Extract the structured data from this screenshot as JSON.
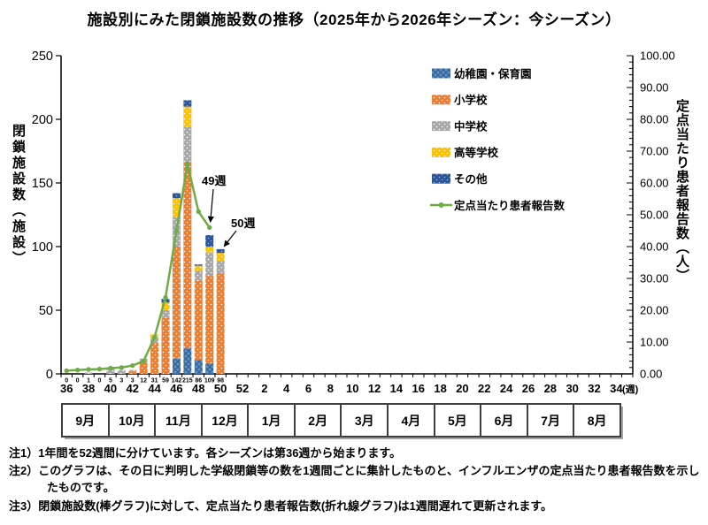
{
  "title": "施設別にみた閉鎖施設数の推移（2025年から2026年シーズン：今シーズン）",
  "chart_data": {
    "type": "stacked-bar+line",
    "x_axis": {
      "tick_labels": [
        "36",
        "38",
        "40",
        "42",
        "44",
        "46",
        "48",
        "50",
        "52",
        "2",
        "4",
        "6",
        "8",
        "10",
        "12",
        "14",
        "16",
        "18",
        "20",
        "22",
        "24",
        "26",
        "28",
        "30",
        "32",
        "34"
      ],
      "unit_label": "(週)",
      "total_weeks": 52,
      "data_weeks": [
        36,
        37,
        38,
        39,
        40,
        41,
        42,
        43,
        44,
        45,
        46,
        47,
        48,
        49,
        50
      ]
    },
    "left_axis": {
      "title": "閉鎖施設数（施設）",
      "min": 0,
      "max": 250,
      "step": 50,
      "ticks": [
        "0",
        "50",
        "100",
        "150",
        "200",
        "250"
      ]
    },
    "right_axis": {
      "title": "定点当たり患者報告数（人）",
      "min": 0,
      "max": 100,
      "step": 10,
      "ticks": [
        "0.00",
        "10.00",
        "20.00",
        "30.00",
        "40.00",
        "50.00",
        "60.00",
        "70.00",
        "80.00",
        "90.00",
        "100.00"
      ]
    },
    "bar_totals": [
      0,
      0,
      1,
      0,
      5,
      3,
      3,
      12,
      31,
      59,
      142,
      215,
      86,
      109,
      98
    ],
    "series": [
      {
        "name": "幼稚園・保育園",
        "color": "#5B94CE",
        "pattern": "crosshatch",
        "pattern_color": "#39618F",
        "values": [
          0,
          0,
          0,
          0,
          0,
          0,
          0,
          0,
          0,
          0,
          12,
          20,
          11,
          8,
          0
        ]
      },
      {
        "name": "小学校",
        "color": "#ED7D31",
        "pattern": "dots",
        "pattern_color": "#FFFFFF",
        "values": [
          0,
          0,
          0,
          0,
          0,
          0,
          2,
          9,
          24,
          44,
          88,
          146,
          62,
          69,
          79
        ]
      },
      {
        "name": "中学校",
        "color": "#A8A8A8",
        "pattern": "dots",
        "pattern_color": "#FFFFFF",
        "values": [
          0,
          0,
          1,
          0,
          5,
          3,
          1,
          3,
          4,
          6,
          23,
          28,
          8,
          18,
          10
        ]
      },
      {
        "name": "高等学校",
        "color": "#FFC000",
        "pattern": "dots",
        "pattern_color": "#FFFFFF",
        "values": [
          0,
          0,
          0,
          0,
          0,
          0,
          0,
          0,
          3,
          6,
          15,
          16,
          4,
          5,
          6
        ]
      },
      {
        "name": "その他",
        "color": "#2E5597",
        "pattern": "dots",
        "pattern_color": "#8FB9E8",
        "values": [
          0,
          0,
          0,
          0,
          0,
          0,
          0,
          0,
          0,
          3,
          4,
          5,
          1,
          9,
          3
        ]
      }
    ],
    "line": {
      "name": "定点当たり患者報告数",
      "color": "#6EAD45",
      "weeks": [
        36,
        37,
        38,
        39,
        40,
        41,
        42,
        43,
        44,
        45,
        46,
        47,
        48,
        49
      ],
      "values": [
        1.0,
        1.2,
        1.4,
        1.5,
        1.8,
        2.0,
        2.6,
        4.0,
        11.5,
        24.0,
        45.0,
        66.0,
        51.0,
        46.0
      ]
    },
    "annotations": [
      {
        "label": "49週",
        "target": "line-week-49"
      },
      {
        "label": "50週",
        "target": "bar-week-50"
      }
    ],
    "legend_position": "upper-middle-right",
    "grid": false
  },
  "months": [
    "9月",
    "10月",
    "11月",
    "12月",
    "1月",
    "2月",
    "3月",
    "4月",
    "5月",
    "6月",
    "7月",
    "8月"
  ],
  "notes": [
    "注1）1年間を52週間に分けています。各シーズンは第36週から始まります。",
    "注2）このグラフは、その日に判明した学級閉鎖等の数を1週間ごとに集計したものと、インフルエンザの定点当たり患者報告数を示したものです。",
    "注3）閉鎖施設数(棒グラフ)に対して、定点当たり患者報告数(折れ線グラフ)は1週間遅れて更新されます。"
  ]
}
